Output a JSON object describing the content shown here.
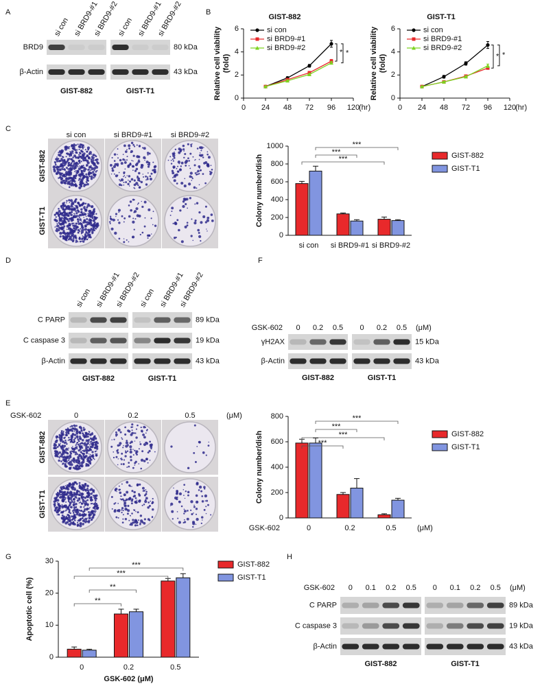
{
  "letters": [
    "A",
    "B",
    "C",
    "D",
    "E",
    "F",
    "G",
    "H"
  ],
  "blots": {
    "A": {
      "lanes": [
        "si con",
        "si BRD9-#1",
        "si BRD9-#2",
        "si con",
        "si BRD9-#1",
        "si BRD9-#2"
      ],
      "rows": [
        {
          "label": "BRD9",
          "size": "80 kDa"
        },
        {
          "label": "β-Actin",
          "size": "43 kDa"
        }
      ],
      "groups": [
        "GIST-882",
        "GIST-T1"
      ]
    },
    "D": {
      "lanes": [
        "si con",
        "si BRD9-#1",
        "si BRD9-#2",
        "si con",
        "si BRD9-#1",
        "si BRD9-#2"
      ],
      "rows": [
        {
          "label": "C PARP",
          "size": "89 kDa"
        },
        {
          "label": "C caspase 3",
          "size": "19 kDa"
        },
        {
          "label": "β-Actin",
          "size": "43 kDa"
        }
      ],
      "groups": [
        "GIST-882",
        "GIST-T1"
      ]
    },
    "F": {
      "treatment": "GSK-602",
      "doses": [
        "0",
        "0.2",
        "0.5",
        "0",
        "0.2",
        "0.5"
      ],
      "unit": "(μM)",
      "rows": [
        {
          "label": "γH2AX",
          "size": "15 kDa"
        },
        {
          "label": "β-Actin",
          "size": "43 kDa"
        }
      ],
      "groups": [
        "GIST-882",
        "GIST-T1"
      ]
    },
    "H": {
      "treatment": "GSK-602",
      "doses": [
        "0",
        "0.1",
        "0.2",
        "0.5",
        "0",
        "0.1",
        "0.2",
        "0.5"
      ],
      "unit": "(μM)",
      "rows": [
        {
          "label": "C PARP",
          "size": "89 kDa"
        },
        {
          "label": "C caspase 3",
          "size": "19 kDa"
        },
        {
          "label": "β-Actin",
          "size": "43 kDa"
        }
      ],
      "groups": [
        "GIST-882",
        "GIST-T1"
      ]
    }
  },
  "colonies": {
    "C": {
      "columns": [
        "si con",
        "si BRD9-#1",
        "si BRD9-#2"
      ],
      "rows": [
        "GIST-882",
        "GIST-T1"
      ]
    },
    "E": {
      "treatment": "GSK-602",
      "columns": [
        "0",
        "0.2",
        "0.5"
      ],
      "unit": "(μM)",
      "rows": [
        "GIST-882",
        "GIST-T1"
      ]
    }
  },
  "chart_data": [
    {
      "type": "line",
      "title": "GIST-882",
      "y_label": [
        "Relative cell viability",
        "(fold)"
      ],
      "x_label": "(hr)",
      "x": [
        24,
        48,
        72,
        96
      ],
      "xlim": [
        0,
        120
      ],
      "xticks": [
        0,
        24,
        48,
        72,
        96,
        120
      ],
      "ylim": [
        0,
        6
      ],
      "yticks": [
        0,
        2,
        4,
        6
      ],
      "series": [
        {
          "name": "si con",
          "color": "#000000",
          "values": [
            1,
            1.75,
            2.8,
            4.7
          ],
          "errors": [
            0.05,
            0.1,
            0.12,
            0.3
          ]
        },
        {
          "name": "si BRD9-#1",
          "color": "#e8292b",
          "values": [
            1,
            1.6,
            2.2,
            3.2
          ],
          "errors": [
            0.03,
            0.08,
            0.1,
            0.15
          ]
        },
        {
          "name": "si BRD9-#2",
          "color": "#7ed321",
          "values": [
            1,
            1.5,
            2.05,
            3.05
          ],
          "errors": [
            0.03,
            0.06,
            0.08,
            0.12
          ]
        }
      ],
      "annotations": [
        "*",
        "*"
      ]
    },
    {
      "type": "line",
      "title": "GIST-T1",
      "y_label": [
        "Relative cell viability",
        "(fold)"
      ],
      "x_label": "(hr)",
      "x": [
        24,
        48,
        72,
        96
      ],
      "xlim": [
        0,
        120
      ],
      "xticks": [
        0,
        24,
        48,
        72,
        96,
        120
      ],
      "ylim": [
        0,
        6
      ],
      "yticks": [
        0,
        2,
        4,
        6
      ],
      "series": [
        {
          "name": "si con",
          "color": "#000000",
          "values": [
            1,
            1.85,
            3.0,
            4.6
          ],
          "errors": [
            0.05,
            0.12,
            0.15,
            0.3
          ]
        },
        {
          "name": "si BRD9-#1",
          "color": "#e8292b",
          "values": [
            1,
            1.4,
            1.9,
            2.6
          ],
          "errors": [
            0.03,
            0.06,
            0.08,
            0.1
          ]
        },
        {
          "name": "si BRD9-#2",
          "color": "#7ed321",
          "values": [
            1,
            1.4,
            1.85,
            2.8
          ],
          "errors": [
            0.03,
            0.06,
            0.08,
            0.15
          ]
        }
      ],
      "annotations": [
        "*",
        "*"
      ]
    },
    {
      "type": "bar",
      "y_label": "Colony number/dish",
      "categories": [
        "si con",
        "si BRD9-#1",
        "si BRD9-#2"
      ],
      "ylim": [
        0,
        1000
      ],
      "yticks": [
        0,
        200,
        400,
        600,
        800,
        1000
      ],
      "series": [
        {
          "name": "GIST-882",
          "color": "#e8292b",
          "values": [
            580,
            240,
            180
          ],
          "errors": [
            25,
            10,
            25
          ]
        },
        {
          "name": "GIST-T1",
          "color": "#8195e0",
          "values": [
            720,
            160,
            165
          ],
          "errors": [
            55,
            15,
            10
          ]
        }
      ],
      "annotations": [
        "***",
        "***",
        "***"
      ]
    },
    {
      "type": "bar",
      "y_label": "Colony number/dish",
      "x_label": "GSK-602",
      "x_unit": "(μM)",
      "categories": [
        "0",
        "0.2",
        "0.5"
      ],
      "ylim": [
        0,
        800
      ],
      "yticks": [
        0,
        200,
        400,
        600,
        800
      ],
      "series": [
        {
          "name": "GIST-882",
          "color": "#e8292b",
          "values": [
            590,
            185,
            25
          ],
          "errors": [
            30,
            15,
            8
          ]
        },
        {
          "name": "GIST-T1",
          "color": "#8195e0",
          "values": [
            590,
            235,
            140
          ],
          "errors": [
            40,
            75,
            15
          ]
        }
      ],
      "annotations": [
        "***",
        "***",
        "***",
        "***"
      ]
    },
    {
      "type": "bar",
      "y_label": "Apoptotic cell (%)",
      "x_label": "GSK-602 (μM)",
      "categories": [
        "0",
        "0.2",
        "0.5"
      ],
      "ylim": [
        0,
        30
      ],
      "yticks": [
        0,
        10,
        20,
        30
      ],
      "series": [
        {
          "name": "GIST-882",
          "color": "#e8292b",
          "values": [
            2.5,
            13.5,
            23.8
          ],
          "errors": [
            0.7,
            1.5,
            0.8
          ]
        },
        {
          "name": "GIST-T1",
          "color": "#8195e0",
          "values": [
            2.2,
            14.2,
            24.8
          ],
          "errors": [
            0.3,
            0.8,
            1.3
          ]
        }
      ],
      "annotations": [
        "***",
        "***",
        "**",
        "**"
      ]
    }
  ]
}
